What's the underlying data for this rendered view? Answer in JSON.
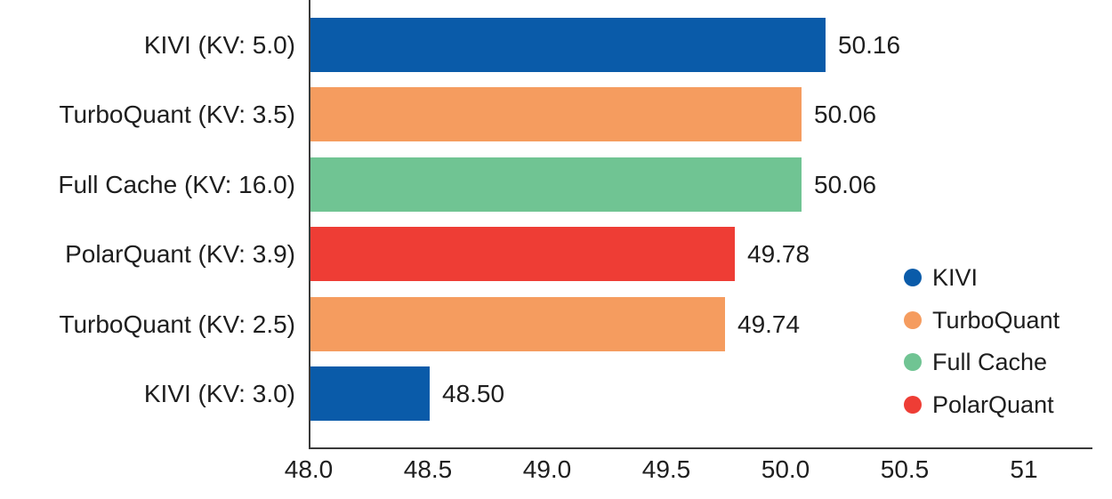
{
  "chart_data": {
    "type": "bar",
    "orientation": "horizontal",
    "title": "",
    "xlabel": "",
    "ylabel": "",
    "categories": [
      "KIVI (KV: 5.0)",
      "TurboQuant (KV: 3.5)",
      "Full Cache (KV: 16.0)",
      "PolarQuant (KV: 3.9)",
      "TurboQuant (KV: 2.5)",
      "KIVI (KV: 3.0)"
    ],
    "values": [
      50.16,
      50.06,
      50.06,
      49.78,
      49.74,
      48.5
    ],
    "value_labels": [
      "50.16",
      "50.06",
      "50.06",
      "49.78",
      "49.74",
      "48.50"
    ],
    "bar_series": [
      "KIVI",
      "TurboQuant",
      "Full Cache",
      "PolarQuant",
      "TurboQuant",
      "KIVI"
    ],
    "series_colors": {
      "KIVI": "#0A5BA9",
      "TurboQuant": "#F59C5F",
      "Full Cache": "#70C493",
      "PolarQuant": "#EE3D35"
    },
    "x_ticks": [
      48.0,
      48.5,
      49.0,
      49.5,
      50.0,
      50.5,
      51
    ],
    "x_tick_labels": [
      "48.0",
      "48.5",
      "49.0",
      "49.5",
      "50.0",
      "50.5",
      "51"
    ],
    "xlim": [
      48.0,
      51.28
    ],
    "grid": false,
    "legend": {
      "position": "right",
      "items": [
        {
          "label": "KIVI",
          "color": "#0A5BA9"
        },
        {
          "label": "TurboQuant",
          "color": "#F59C5F"
        },
        {
          "label": "Full Cache",
          "color": "#70C493"
        },
        {
          "label": "PolarQuant",
          "color": "#EE3D35"
        }
      ]
    }
  },
  "colors": {
    "background": "#ffffff",
    "axis": "#3a3a3a",
    "text": "#1e1e1e"
  }
}
